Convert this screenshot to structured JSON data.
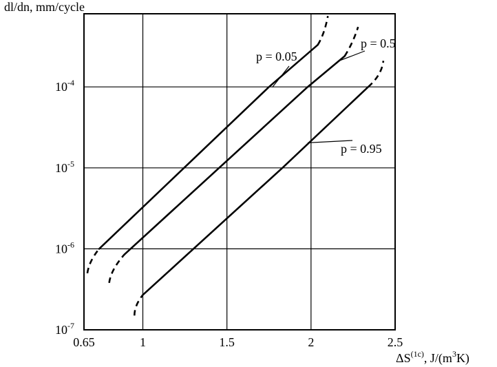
{
  "chart_data": {
    "type": "line",
    "title": "",
    "ylabel": "dl/dn, mm/cycle",
    "xlabel": {
      "base": "ΔS",
      "sup1": "(1c)",
      "mid": ", J/(m",
      "sup2": "3",
      "end": "K)"
    },
    "y_scale": "log",
    "xlim": [
      0.65,
      2.5
    ],
    "ylim": [
      1e-07,
      0.001
    ],
    "grid": true,
    "x_ticks": [
      {
        "value": 0.65,
        "label": "0.65"
      },
      {
        "value": 1,
        "label": "1"
      },
      {
        "value": 1.5,
        "label": "1.5"
      },
      {
        "value": 2,
        "label": "2"
      },
      {
        "value": 2.5,
        "label": "2.5"
      }
    ],
    "y_ticks": [
      {
        "value": 1e-07,
        "base": "10",
        "exp": "-7"
      },
      {
        "value": 1e-06,
        "base": "10",
        "exp": "-6"
      },
      {
        "value": 1e-05,
        "base": "10",
        "exp": "-5"
      },
      {
        "value": 0.0001,
        "base": "10",
        "exp": "-4"
      }
    ],
    "series": [
      {
        "name": "p = 0.05",
        "solid": [
          [
            0.74,
            1e-06
          ],
          [
            1.75,
            0.0001
          ],
          [
            2.04,
            0.00033
          ]
        ],
        "dashed_low": [
          [
            0.67,
            5e-07
          ],
          [
            0.68,
            7e-07
          ],
          [
            0.74,
            1e-06
          ]
        ],
        "dashed_high": [
          [
            2.04,
            0.00033
          ],
          [
            2.08,
            0.00045
          ],
          [
            2.1,
            0.00075
          ]
        ]
      },
      {
        "name": "p = 0.5",
        "solid": [
          [
            0.89,
            8.5e-07
          ],
          [
            1.98,
            0.0001
          ],
          [
            2.2,
            0.00024
          ]
        ],
        "dashed_low": [
          [
            0.8,
            3.8e-07
          ],
          [
            0.81,
            5.5e-07
          ],
          [
            0.89,
            8.5e-07
          ]
        ],
        "dashed_high": [
          [
            2.2,
            0.00024
          ],
          [
            2.25,
            0.00035
          ],
          [
            2.28,
            0.00055
          ]
        ]
      },
      {
        "name": "p = 0.95",
        "solid": [
          [
            1.0,
            2.7e-07
          ],
          [
            1.83,
            1e-05
          ],
          [
            2.34,
            0.0001
          ]
        ],
        "dashed_low": [
          [
            0.95,
            1.5e-07
          ],
          [
            0.95,
            2e-07
          ],
          [
            1.0,
            2.7e-07
          ]
        ],
        "dashed_high": [
          [
            2.34,
            0.0001
          ],
          [
            2.42,
            0.00014
          ],
          [
            2.43,
            0.00021
          ]
        ]
      }
    ],
    "annotations": [
      {
        "text": "p = 0.05",
        "series": 0
      },
      {
        "text": "p = 0.5",
        "series": 1
      },
      {
        "text": "p = 0.95",
        "series": 2
      }
    ]
  }
}
